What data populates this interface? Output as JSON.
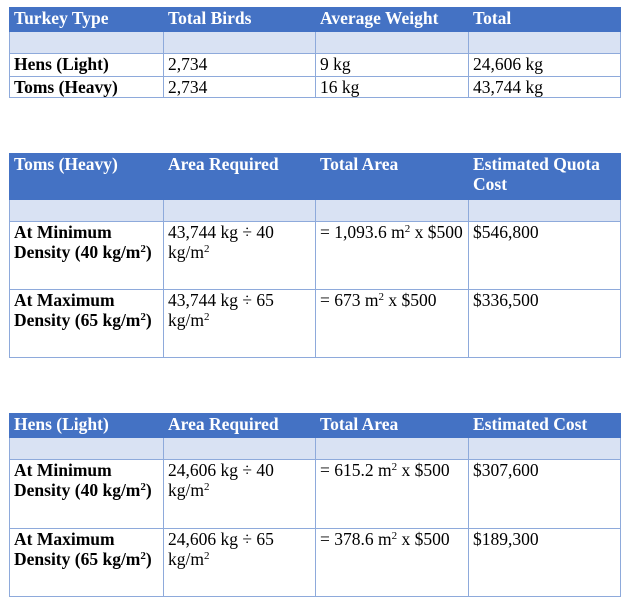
{
  "table1": {
    "headers": [
      "Turkey Type",
      "Total Birds",
      "Average Weight",
      "Total"
    ],
    "rows": [
      [
        "Hens (Light)",
        "2,734",
        "9 kg",
        "24,606 kg"
      ],
      [
        "Toms (Heavy)",
        "2,734",
        "16 kg",
        "43,744 kg"
      ]
    ]
  },
  "table2": {
    "headers": [
      "Toms (Heavy)",
      "Area Required",
      "Total Area",
      "Estimated Quota Cost"
    ],
    "rows": [
      {
        "label": "At Minimum Density (40 kg/m",
        "label_sup": "2",
        "label_end": ")",
        "area": "43,744 kg ÷ 40 kg/m",
        "area_sup": "2",
        "total_pre": "= 1,093.6 m",
        "total_sup": "2",
        "total_post": " x $500",
        "cost": "$546,800"
      },
      {
        "label": "At Maximum Density (65 kg/m",
        "label_sup": "2",
        "label_end": ")",
        "area": "43,744 kg ÷ 65 kg/m",
        "area_sup": "2",
        "total_pre": "= 673 m",
        "total_sup": "2",
        "total_post": " x $500",
        "cost": "$336,500"
      }
    ]
  },
  "table3": {
    "headers": [
      "Hens (Light)",
      "Area Required",
      "Total Area",
      "Estimated Cost"
    ],
    "rows": [
      {
        "label": "At Minimum Density (40 kg/m",
        "label_sup": "2",
        "label_end": ")",
        "area": "24,606 kg ÷ 40 kg/m",
        "area_sup": "2",
        "total_pre": "= 615.2 m",
        "total_sup": "2",
        "total_post": " x $500",
        "cost": "$307,600"
      },
      {
        "label": "At Maximum Density (65 kg/m",
        "label_sup": "2",
        "label_end": ")",
        "area": "24,606 kg ÷ 65 kg/m",
        "area_sup": "2",
        "total_pre": "= 378.6 m",
        "total_sup": "2",
        "total_post": " x $500",
        "cost": "$189,300"
      }
    ]
  },
  "colors": {
    "header": "#4472c4",
    "band": "#d9e2f3",
    "border": "#8eaadb"
  }
}
